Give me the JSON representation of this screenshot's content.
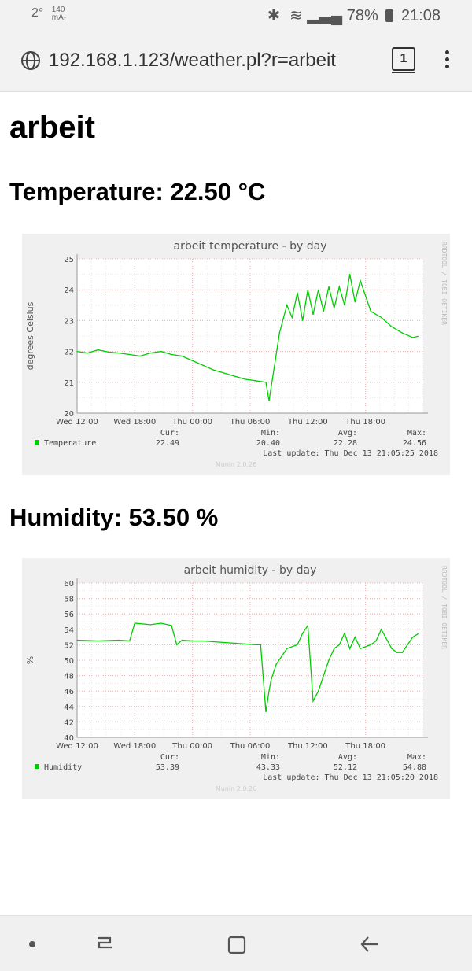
{
  "status": {
    "signal_left": "2°",
    "small_top": "140",
    "small_bottom": "mA-",
    "battery": "78%",
    "time": "21:08"
  },
  "browser": {
    "url": "192.168.1.123/weather.pl?r=arbeit",
    "tab_count": "1"
  },
  "page": {
    "title": "arbeit",
    "temperature_heading": "Temperature: 22.50 °C",
    "humidity_heading": "Humidity: 53.50 %"
  },
  "chart_data": [
    {
      "type": "line",
      "title": "arbeit temperature - by day",
      "ylabel": "degrees Celsius",
      "side_label": "RRDTOOL / TOBI OETIKER",
      "xticks": [
        "Wed 12:00",
        "Wed 18:00",
        "Thu 00:00",
        "Thu 06:00",
        "Thu 12:00",
        "Thu 18:00"
      ],
      "yticks": [
        20,
        21,
        22,
        23,
        24,
        25
      ],
      "ylim": [
        20,
        25
      ],
      "xlim": [
        0,
        33
      ],
      "grid": true,
      "series": [
        {
          "name": "Temperature",
          "color": "#00cc00",
          "x": [
            0,
            1,
            2,
            3,
            4,
            5,
            6,
            7,
            8,
            9,
            10,
            11,
            12,
            13,
            14,
            15,
            16,
            17,
            18,
            18.3,
            18.8,
            19.3,
            20,
            20.5,
            21,
            21.5,
            22,
            22.5,
            23,
            23.5,
            24,
            24.5,
            25,
            25.5,
            26,
            26.5,
            27,
            28,
            29,
            30,
            31,
            32,
            32.5
          ],
          "y": [
            22.0,
            21.95,
            22.05,
            21.98,
            21.95,
            21.9,
            21.85,
            21.95,
            22.0,
            21.9,
            21.85,
            21.7,
            21.55,
            21.4,
            21.3,
            21.2,
            21.1,
            21.05,
            21.0,
            20.4,
            21.5,
            22.6,
            23.5,
            23.1,
            23.9,
            23.0,
            24.0,
            23.2,
            24.0,
            23.3,
            24.1,
            23.4,
            24.1,
            23.5,
            24.5,
            23.6,
            24.3,
            23.3,
            23.1,
            22.8,
            22.6,
            22.45,
            22.49
          ]
        }
      ],
      "legend": [
        {
          "label": "Temperature",
          "cur": "22.49",
          "min": "20.40",
          "avg": "22.28",
          "max": "24.56"
        }
      ],
      "stat_headers": {
        "cur": "Cur:",
        "min": "Min:",
        "avg": "Avg:",
        "max": "Max:"
      },
      "last_update": "Last update: Thu Dec 13 21:05:25 2018",
      "footer": "Munin 2.0.26"
    },
    {
      "type": "line",
      "title": "arbeit humidity - by day",
      "ylabel": "%",
      "side_label": "RRDTOOL / TOBI OETIKER",
      "xticks": [
        "Wed 12:00",
        "Wed 18:00",
        "Thu 00:00",
        "Thu 06:00",
        "Thu 12:00",
        "Thu 18:00"
      ],
      "yticks": [
        40,
        42,
        44,
        46,
        48,
        50,
        52,
        54,
        56,
        58,
        60
      ],
      "ylim": [
        40,
        60
      ],
      "xlim": [
        0,
        33
      ],
      "grid": true,
      "series": [
        {
          "name": "Humidity",
          "color": "#00cc00",
          "x": [
            0,
            2,
            4,
            5,
            5.5,
            7,
            8,
            9,
            9.5,
            10,
            11,
            12,
            13,
            14,
            15,
            16,
            17,
            17.5,
            18,
            18.3,
            18.5,
            19,
            20,
            21,
            21.5,
            22,
            22.5,
            23,
            24,
            24.5,
            25,
            25.5,
            26,
            26.5,
            27,
            28,
            28.5,
            29,
            30,
            30.5,
            31,
            31.5,
            32,
            32.5
          ],
          "y": [
            52.6,
            52.5,
            52.6,
            52.5,
            54.8,
            54.6,
            54.8,
            54.5,
            52.0,
            52.6,
            52.5,
            52.5,
            52.4,
            52.3,
            52.2,
            52.1,
            52.0,
            52.0,
            43.3,
            46.0,
            47.5,
            49.5,
            51.5,
            52.0,
            53.5,
            54.5,
            44.7,
            46.0,
            50.0,
            51.5,
            52.0,
            53.5,
            51.5,
            53.0,
            51.5,
            52.0,
            52.5,
            54.0,
            51.5,
            51.0,
            51.0,
            52.0,
            53.0,
            53.4
          ]
        }
      ],
      "legend": [
        {
          "label": "Humidity",
          "cur": "53.39",
          "min": "43.33",
          "avg": "52.12",
          "max": "54.88"
        }
      ],
      "stat_headers": {
        "cur": "Cur:",
        "min": "Min:",
        "avg": "Avg:",
        "max": "Max:"
      },
      "last_update": "Last update: Thu Dec 13 21:05:20 2018",
      "footer": "Munin 2.0.26"
    }
  ]
}
